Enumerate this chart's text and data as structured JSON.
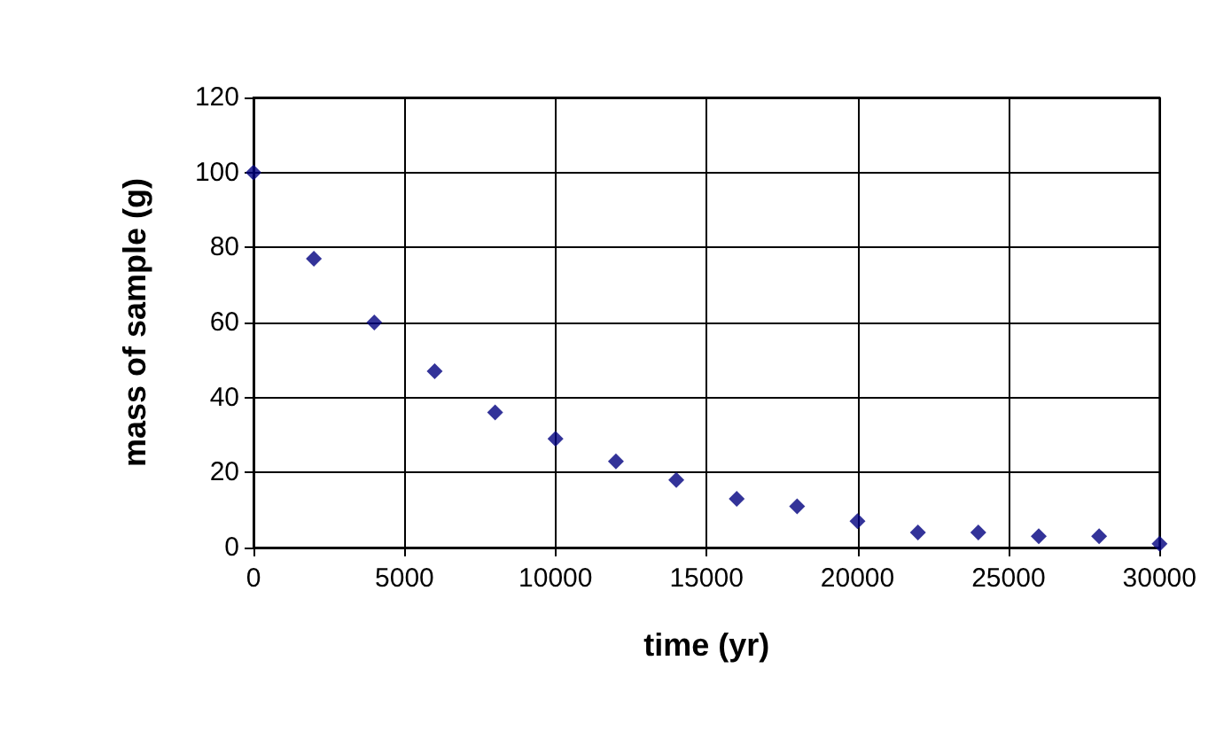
{
  "chart_data": {
    "type": "scatter",
    "xlabel": "time (yr)",
    "ylabel": "mass of sample (g)",
    "x": [
      0,
      2000,
      4000,
      6000,
      8000,
      10000,
      12000,
      14000,
      16000,
      18000,
      20000,
      22000,
      24000,
      26000,
      28000,
      30000
    ],
    "values": [
      100,
      77,
      60,
      47,
      36,
      29,
      23,
      18,
      13,
      11,
      7,
      4,
      4,
      3,
      3,
      1
    ],
    "color": "#000080",
    "marker": "diamond",
    "xlim": [
      0,
      30000
    ],
    "xticks": [
      0,
      5000,
      10000,
      15000,
      20000,
      25000,
      30000
    ],
    "ylim": [
      0,
      120
    ],
    "yticks": [
      0,
      20,
      40,
      60,
      80,
      100,
      120
    ],
    "grid": true
  }
}
